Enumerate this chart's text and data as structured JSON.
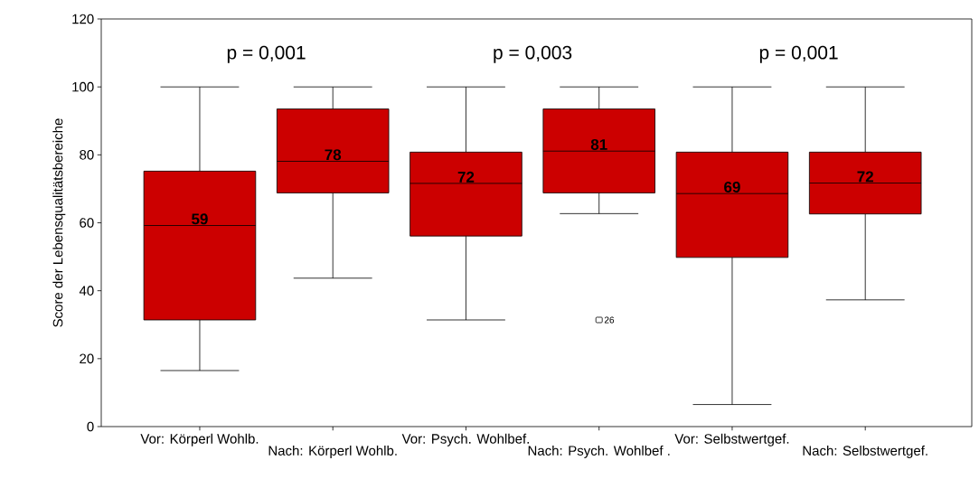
{
  "chart_data": {
    "type": "box",
    "ylabel": "Score der Lebensqualitätsbereiche",
    "categories": [
      "Vor: Körperl Wohlb.",
      "Nach: Körperl Wohlb.",
      "Vor: Psych. Wohlbef.",
      "Nach: Psych. Wohlbef .",
      "Vor: Selbstwertgef.",
      "Nach: Selbstwertgef."
    ],
    "color": "#cc0000",
    "boxes": [
      {
        "low": 16.5,
        "q1": 31.4,
        "median": 59.2,
        "q3": 75.2,
        "high": 100
      },
      {
        "low": 43.7,
        "q1": 68.8,
        "median": 78.1,
        "q3": 93.5,
        "high": 100
      },
      {
        "low": 31.4,
        "q1": 56.1,
        "median": 71.6,
        "q3": 80.8,
        "high": 100
      },
      {
        "low": 62.7,
        "q1": 68.8,
        "median": 81.1,
        "q3": 93.5,
        "high": 100,
        "outliers": [
          31.4
        ]
      },
      {
        "low": 6.5,
        "q1": 49.8,
        "median": 68.6,
        "q3": 80.8,
        "high": 100
      },
      {
        "low": 37.3,
        "q1": 62.6,
        "median": 71.7,
        "q3": 80.8,
        "high": 100
      }
    ],
    "value_labels": [
      "59",
      "78",
      "72",
      "81",
      "69",
      "72"
    ],
    "ylim": [
      0,
      120
    ],
    "yticks": [
      0,
      20,
      40,
      60,
      80,
      100,
      120
    ],
    "annotations": [
      "p = 0,001",
      "p = 0,003",
      "p = 0,001",
      "26"
    ]
  }
}
